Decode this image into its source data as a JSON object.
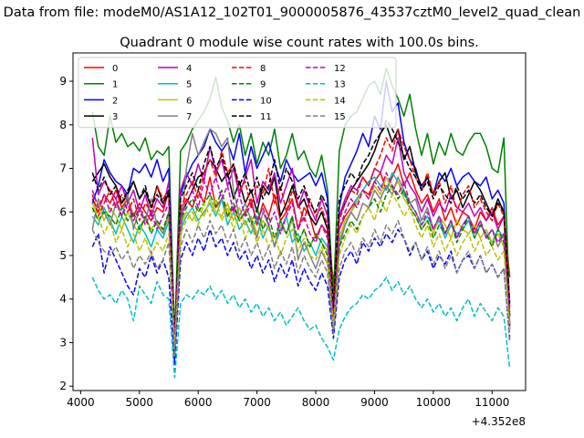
{
  "figure": {
    "suptitle": "Data from file: modeM0/AS1A12_102T01_9000005876_43537cztM0_level2_quad_clean",
    "offset_label": "+4.352e8"
  },
  "chart_data": {
    "type": "line",
    "title": "Quadrant 0 module wise count rates with 100.0s bins.",
    "xlabel": "",
    "ylabel": "",
    "xlim": [
      3870,
      11570
    ],
    "ylim": [
      1.9,
      9.65
    ],
    "xticks": [
      4000,
      5000,
      6000,
      7000,
      8000,
      9000,
      10000,
      11000
    ],
    "yticks": [
      2,
      3,
      4,
      5,
      6,
      7,
      8,
      9
    ],
    "grid": false,
    "legend_position": "top-left",
    "legend_columns": 5,
    "x_start": 4200,
    "x_step": 100,
    "series": [
      {
        "name": "0",
        "color": "#ff0000",
        "style": "solid",
        "values": [
          6.3,
          6.0,
          6.4,
          6.2,
          6.5,
          6.1,
          6.3,
          5.9,
          6.2,
          6.0,
          5.8,
          6.1,
          6.0,
          6.5,
          2.9,
          6.0,
          6.3,
          6.1,
          6.5,
          6.2,
          6.8,
          6.1,
          6.3,
          5.9,
          6.1,
          5.8,
          6.0,
          6.3,
          5.7,
          6.2,
          5.9,
          6.4,
          5.8,
          6.0,
          6.3,
          5.6,
          6.1,
          5.9,
          5.4,
          5.7,
          5.5,
          4.4,
          5.6,
          5.9,
          6.1,
          6.3,
          6.5,
          6.4,
          6.7,
          6.9,
          6.5,
          6.8,
          7.1,
          6.6,
          6.9,
          6.5,
          6.2,
          6.4,
          6.0,
          6.3,
          5.8,
          6.1,
          5.7,
          6.0,
          5.9,
          5.6,
          6.0,
          5.8,
          6.1,
          5.7,
          5.9,
          4.5
        ]
      },
      {
        "name": "1",
        "color": "#008000",
        "style": "solid",
        "values": [
          8.3,
          7.5,
          7.3,
          8.2,
          7.6,
          7.8,
          7.5,
          7.6,
          7.4,
          7.7,
          7.2,
          7.4,
          7.3,
          7.5,
          3.1,
          7.4,
          7.6,
          7.9,
          8.1,
          8.3,
          8.6,
          9.1,
          8.4,
          8.1,
          7.6,
          8.0,
          7.3,
          7.8,
          7.1,
          7.6,
          7.3,
          7.9,
          7.0,
          7.3,
          7.8,
          7.2,
          7.4,
          7.0,
          6.8,
          7.3,
          6.5,
          4.0,
          7.4,
          8.0,
          8.2,
          8.3,
          8.6,
          8.9,
          9.0,
          8.7,
          9.3,
          8.9,
          8.6,
          8.2,
          8.7,
          7.9,
          7.3,
          7.8,
          7.1,
          7.6,
          7.3,
          7.8,
          7.4,
          7.3,
          7.6,
          7.8,
          7.8,
          7.5,
          7.0,
          6.9,
          7.7,
          3.6
        ]
      },
      {
        "name": "2",
        "color": "#0000ff",
        "style": "solid",
        "values": [
          6.2,
          6.6,
          7.2,
          6.9,
          6.7,
          6.6,
          6.4,
          7.0,
          6.9,
          7.1,
          6.8,
          7.2,
          6.7,
          7.0,
          2.7,
          6.4,
          6.8,
          7.1,
          7.3,
          7.5,
          7.9,
          7.6,
          7.4,
          7.6,
          7.2,
          7.8,
          6.9,
          7.5,
          7.0,
          7.3,
          7.6,
          7.1,
          6.7,
          7.2,
          6.9,
          6.7,
          6.8,
          6.9,
          6.6,
          6.9,
          6.3,
          3.5,
          6.1,
          6.8,
          7.1,
          7.4,
          7.8,
          7.5,
          8.2,
          7.9,
          9.0,
          8.3,
          8.5,
          7.6,
          7.2,
          7.0,
          6.5,
          6.8,
          6.4,
          6.9,
          6.7,
          7.0,
          6.6,
          6.8,
          6.9,
          6.7,
          6.6,
          6.8,
          6.3,
          6.5,
          6.2,
          3.3
        ]
      },
      {
        "name": "3",
        "color": "#000000",
        "style": "solid",
        "values": [
          6.7,
          6.9,
          7.1,
          6.8,
          6.6,
          6.2,
          6.4,
          6.7,
          6.3,
          6.5,
          6.1,
          6.6,
          6.2,
          6.4,
          3.0,
          5.9,
          6.2,
          6.5,
          6.8,
          6.9,
          7.2,
          7.0,
          6.7,
          6.9,
          6.3,
          6.7,
          6.2,
          6.5,
          6.0,
          6.6,
          6.4,
          6.8,
          5.9,
          6.2,
          6.6,
          6.1,
          6.3,
          5.9,
          5.7,
          6.0,
          5.6,
          3.7,
          5.9,
          6.2,
          6.5,
          6.7,
          6.9,
          7.1,
          7.4,
          7.8,
          8.0,
          7.6,
          7.9,
          7.2,
          7.5,
          6.9,
          6.6,
          6.8,
          6.4,
          6.7,
          6.9,
          6.3,
          6.5,
          6.1,
          6.4,
          6.7,
          6.5,
          6.2,
          5.9,
          6.3,
          6.0,
          3.4
        ]
      },
      {
        "name": "4",
        "color": "#bf00bf",
        "style": "solid",
        "values": [
          7.7,
          6.4,
          6.7,
          6.5,
          6.3,
          6.6,
          6.2,
          6.5,
          6.0,
          6.4,
          5.9,
          6.3,
          6.1,
          6.7,
          2.8,
          6.5,
          6.9,
          6.6,
          7.1,
          6.7,
          7.5,
          6.9,
          7.2,
          6.6,
          7.0,
          6.4,
          6.8,
          7.2,
          6.2,
          6.7,
          6.5,
          6.9,
          6.2,
          6.6,
          7.0,
          6.1,
          6.5,
          6.1,
          5.8,
          6.3,
          5.9,
          3.5,
          5.9,
          6.3,
          6.6,
          6.5,
          6.8,
          6.6,
          7.0,
          6.9,
          7.3,
          7.1,
          7.7,
          6.9,
          6.6,
          6.4,
          6.0,
          6.3,
          5.9,
          6.2,
          6.0,
          6.4,
          6.1,
          6.0,
          6.2,
          5.9,
          6.1,
          5.8,
          6.0,
          5.6,
          5.9,
          3.4
        ]
      },
      {
        "name": "5",
        "color": "#00bfbf",
        "style": "solid",
        "values": [
          5.9,
          5.7,
          6.1,
          5.8,
          5.5,
          5.9,
          5.6,
          5.3,
          5.7,
          5.5,
          5.2,
          5.6,
          5.4,
          5.8,
          2.6,
          5.6,
          5.9,
          6.1,
          5.8,
          6.0,
          6.2,
          5.9,
          6.3,
          5.7,
          6.0,
          5.6,
          5.8,
          5.5,
          5.9,
          5.4,
          5.7,
          5.2,
          5.6,
          5.9,
          5.3,
          5.5,
          5.1,
          5.3,
          5.0,
          5.4,
          5.2,
          3.9,
          5.3,
          5.7,
          6.0,
          6.3,
          6.5,
          6.7,
          6.8,
          6.6,
          6.5,
          6.9,
          6.7,
          6.4,
          6.2,
          6.0,
          5.7,
          5.9,
          5.6,
          5.8,
          5.4,
          5.7,
          5.5,
          5.6,
          5.8,
          5.4,
          5.7,
          5.5,
          5.3,
          5.6,
          5.4,
          3.6
        ]
      },
      {
        "name": "6",
        "color": "#bfbf00",
        "style": "solid",
        "values": [
          6.0,
          6.2,
          5.8,
          6.1,
          5.9,
          5.6,
          6.0,
          5.7,
          5.5,
          5.9,
          5.6,
          5.8,
          5.5,
          5.9,
          2.9,
          5.7,
          6.0,
          5.8,
          6.1,
          5.9,
          6.3,
          6.0,
          5.9,
          6.2,
          5.8,
          6.1,
          5.7,
          5.9,
          5.5,
          5.8,
          5.6,
          5.4,
          5.7,
          5.5,
          5.8,
          5.3,
          5.6,
          5.2,
          5.5,
          5.3,
          5.1,
          3.8,
          5.4,
          5.8,
          6.0,
          6.2,
          6.5,
          6.3,
          6.6,
          6.4,
          6.8,
          6.5,
          6.7,
          6.3,
          6.1,
          5.9,
          5.6,
          5.8,
          5.5,
          5.9,
          5.7,
          5.4,
          5.8,
          5.6,
          5.5,
          5.7,
          5.4,
          5.6,
          5.3,
          5.5,
          5.2,
          3.7
        ]
      },
      {
        "name": "7",
        "color": "#808080",
        "style": "solid",
        "values": [
          5.6,
          6.3,
          6.0,
          5.7,
          6.2,
          5.9,
          6.4,
          5.6,
          6.1,
          5.8,
          6.3,
          5.7,
          5.5,
          6.0,
          2.9,
          5.4,
          7.0,
          7.8,
          7.3,
          7.6,
          7.9,
          7.8,
          7.5,
          7.7,
          6.5,
          5.9,
          6.2,
          5.8,
          5.4,
          6.0,
          5.7,
          5.2,
          5.8,
          5.5,
          5.9,
          4.9,
          5.3,
          5.0,
          4.7,
          5.1,
          4.8,
          3.3,
          5.2,
          5.7,
          6.0,
          5.8,
          6.2,
          6.1,
          6.5,
          6.3,
          6.6,
          6.4,
          6.8,
          6.5,
          6.2,
          6.3,
          5.8,
          6.1,
          5.6,
          5.9,
          5.5,
          5.8,
          5.4,
          5.7,
          5.9,
          5.5,
          5.8,
          5.4,
          5.6,
          5.2,
          5.5,
          3.5
        ]
      },
      {
        "name": "8",
        "color": "#ff0000",
        "style": "dashed",
        "values": [
          6.4,
          5.9,
          6.2,
          6.5,
          6.1,
          6.4,
          6.0,
          6.3,
          5.8,
          6.2,
          6.0,
          6.6,
          6.3,
          6.5,
          3.1,
          6.1,
          6.4,
          6.7,
          6.3,
          6.9,
          7.2,
          6.8,
          7.4,
          6.9,
          7.1,
          6.5,
          6.7,
          6.1,
          6.6,
          6.4,
          7.0,
          6.2,
          6.6,
          6.0,
          6.5,
          6.2,
          5.8,
          6.3,
          5.9,
          6.1,
          5.7,
          3.9,
          5.8,
          6.2,
          6.5,
          6.4,
          6.8,
          6.6,
          7.0,
          7.3,
          7.7,
          7.4,
          7.9,
          7.5,
          7.2,
          6.8,
          6.5,
          6.9,
          6.4,
          6.7,
          6.2,
          6.6,
          6.0,
          6.4,
          6.6,
          6.1,
          6.3,
          6.0,
          5.8,
          6.2,
          5.9,
          3.8
        ]
      },
      {
        "name": "9",
        "color": "#008000",
        "style": "dashed",
        "values": [
          6.1,
          5.8,
          6.0,
          5.9,
          5.7,
          6.1,
          5.8,
          6.0,
          5.6,
          5.9,
          5.5,
          5.8,
          5.6,
          6.0,
          2.8,
          5.8,
          6.1,
          6.3,
          6.0,
          6.2,
          6.4,
          6.1,
          6.5,
          5.9,
          6.2,
          5.8,
          6.0,
          5.7,
          6.1,
          5.6,
          5.9,
          5.4,
          5.8,
          5.5,
          5.9,
          5.3,
          5.6,
          5.2,
          5.5,
          5.3,
          5.0,
          3.6,
          5.2,
          5.5,
          5.8,
          5.6,
          5.9,
          6.1,
          6.3,
          6.0,
          6.4,
          6.6,
          6.3,
          6.5,
          6.1,
          5.9,
          5.6,
          5.8,
          5.4,
          5.7,
          5.5,
          5.8,
          5.3,
          5.6,
          5.9,
          5.4,
          5.7,
          5.5,
          5.2,
          5.6,
          5.3,
          3.7
        ]
      },
      {
        "name": "10",
        "color": "#0000ff",
        "style": "dashed",
        "values": [
          5.2,
          5.5,
          4.6,
          5.2,
          4.9,
          4.6,
          4.3,
          4.1,
          4.7,
          4.5,
          5.0,
          4.6,
          4.9,
          4.5,
          2.5,
          4.9,
          5.3,
          5.0,
          5.4,
          5.1,
          5.6,
          5.2,
          5.4,
          5.0,
          5.3,
          4.9,
          5.1,
          4.7,
          5.0,
          4.6,
          4.9,
          4.4,
          4.8,
          4.5,
          4.9,
          4.3,
          4.7,
          4.4,
          4.2,
          4.6,
          4.3,
          3.1,
          4.5,
          4.9,
          5.1,
          4.8,
          5.3,
          5.1,
          5.4,
          5.2,
          5.5,
          5.3,
          5.6,
          5.4,
          5.0,
          5.3,
          4.9,
          5.1,
          4.7,
          5.0,
          4.8,
          5.1,
          4.6,
          4.9,
          5.0,
          4.7,
          5.0,
          4.6,
          4.8,
          4.5,
          4.7,
          3.1
        ]
      },
      {
        "name": "11",
        "color": "#000000",
        "style": "dashed",
        "values": [
          6.9,
          6.5,
          6.8,
          6.4,
          6.6,
          6.2,
          6.5,
          6.7,
          6.3,
          6.6,
          6.1,
          6.4,
          6.2,
          6.5,
          3.1,
          6.3,
          6.6,
          6.9,
          6.5,
          7.1,
          7.5,
          7.0,
          7.3,
          6.8,
          7.1,
          6.6,
          6.9,
          6.4,
          6.8,
          6.3,
          6.6,
          7.2,
          6.5,
          7.0,
          6.7,
          6.3,
          6.6,
          6.2,
          6.0,
          6.4,
          6.1,
          3.8,
          6.3,
          6.6,
          6.9,
          6.7,
          7.1,
          7.3,
          7.6,
          7.8,
          8.1,
          7.9,
          7.6,
          7.3,
          7.0,
          6.8,
          6.5,
          6.7,
          6.3,
          6.6,
          6.4,
          6.2,
          6.6,
          6.3,
          6.5,
          6.2,
          6.4,
          6.1,
          5.9,
          6.2,
          6.0,
          3.9
        ]
      },
      {
        "name": "12",
        "color": "#bf00bf",
        "style": "dashed",
        "values": [
          6.5,
          6.1,
          6.4,
          6.0,
          6.3,
          5.9,
          6.2,
          5.8,
          6.1,
          5.7,
          6.0,
          5.6,
          5.9,
          6.2,
          3.0,
          5.9,
          6.2,
          6.5,
          6.1,
          6.7,
          6.4,
          6.8,
          6.3,
          6.6,
          6.0,
          6.4,
          5.9,
          6.2,
          5.8,
          6.1,
          5.7,
          6.0,
          5.5,
          5.9,
          6.2,
          5.6,
          5.9,
          5.5,
          5.3,
          5.7,
          5.4,
          3.5,
          5.6,
          6.0,
          6.3,
          6.1,
          6.5,
          6.3,
          6.7,
          6.5,
          6.9,
          6.6,
          6.4,
          6.7,
          6.2,
          6.0,
          5.7,
          6.0,
          5.6,
          5.9,
          5.5,
          5.8,
          5.4,
          5.7,
          5.9,
          5.5,
          5.8,
          5.4,
          5.6,
          5.3,
          5.5,
          3.6
        ]
      },
      {
        "name": "13",
        "color": "#00bfbf",
        "style": "dashed",
        "values": [
          4.5,
          4.2,
          4.0,
          4.1,
          3.9,
          4.2,
          4.0,
          3.5,
          4.3,
          4.1,
          3.9,
          4.4,
          4.1,
          4.0,
          2.2,
          3.9,
          4.1,
          4.0,
          4.2,
          4.1,
          4.3,
          4.0,
          4.2,
          3.9,
          4.1,
          3.8,
          4.0,
          3.7,
          3.9,
          3.6,
          3.8,
          3.5,
          3.7,
          3.4,
          3.6,
          3.8,
          3.5,
          3.3,
          3.4,
          3.1,
          2.9,
          2.6,
          3.3,
          3.6,
          3.8,
          3.9,
          4.1,
          4.0,
          4.2,
          4.3,
          4.5,
          4.2,
          4.4,
          4.1,
          4.3,
          4.0,
          3.8,
          4.0,
          3.7,
          3.9,
          3.6,
          3.8,
          3.5,
          3.8,
          4.0,
          3.6,
          3.9,
          3.7,
          3.5,
          3.8,
          3.6,
          2.4
        ]
      },
      {
        "name": "14",
        "color": "#bfbf00",
        "style": "dashed",
        "values": [
          6.2,
          5.9,
          5.5,
          5.8,
          5.3,
          5.6,
          5.2,
          5.5,
          5.1,
          5.4,
          5.0,
          5.3,
          5.1,
          5.5,
          2.9,
          5.5,
          5.8,
          6.0,
          5.7,
          6.2,
          5.9,
          6.3,
          5.8,
          6.1,
          5.6,
          5.9,
          5.4,
          5.7,
          5.3,
          5.6,
          5.2,
          5.5,
          5.0,
          5.4,
          5.6,
          5.1,
          5.4,
          5.0,
          4.9,
          5.2,
          4.8,
          3.4,
          5.0,
          5.4,
          5.7,
          5.5,
          5.9,
          6.1,
          5.8,
          6.3,
          6.0,
          6.4,
          6.2,
          5.9,
          6.1,
          5.7,
          5.4,
          5.7,
          5.2,
          5.5,
          5.1,
          5.4,
          5.0,
          5.3,
          5.5,
          5.1,
          5.4,
          5.0,
          5.2,
          4.9,
          5.1,
          3.3
        ]
      },
      {
        "name": "15",
        "color": "#808080",
        "style": "dashed",
        "values": [
          5.6,
          5.3,
          5.1,
          5.0,
          5.2,
          4.9,
          5.1,
          4.7,
          5.0,
          4.8,
          5.1,
          4.7,
          4.9,
          5.3,
          2.7,
          5.2,
          5.6,
          5.3,
          5.7,
          5.4,
          5.8,
          5.5,
          5.7,
          5.3,
          5.6,
          5.1,
          5.4,
          5.0,
          5.3,
          4.9,
          5.2,
          4.7,
          5.1,
          4.8,
          5.2,
          4.6,
          5.0,
          4.7,
          4.5,
          4.9,
          4.6,
          3.2,
          4.7,
          5.1,
          5.3,
          5.0,
          5.4,
          5.2,
          5.6,
          5.3,
          5.7,
          5.5,
          5.8,
          5.4,
          5.1,
          5.3,
          4.9,
          5.2,
          4.8,
          5.1,
          4.7,
          5.0,
          4.6,
          4.9,
          5.1,
          4.7,
          5.0,
          4.6,
          4.8,
          4.5,
          4.7,
          3.0
        ]
      }
    ]
  }
}
